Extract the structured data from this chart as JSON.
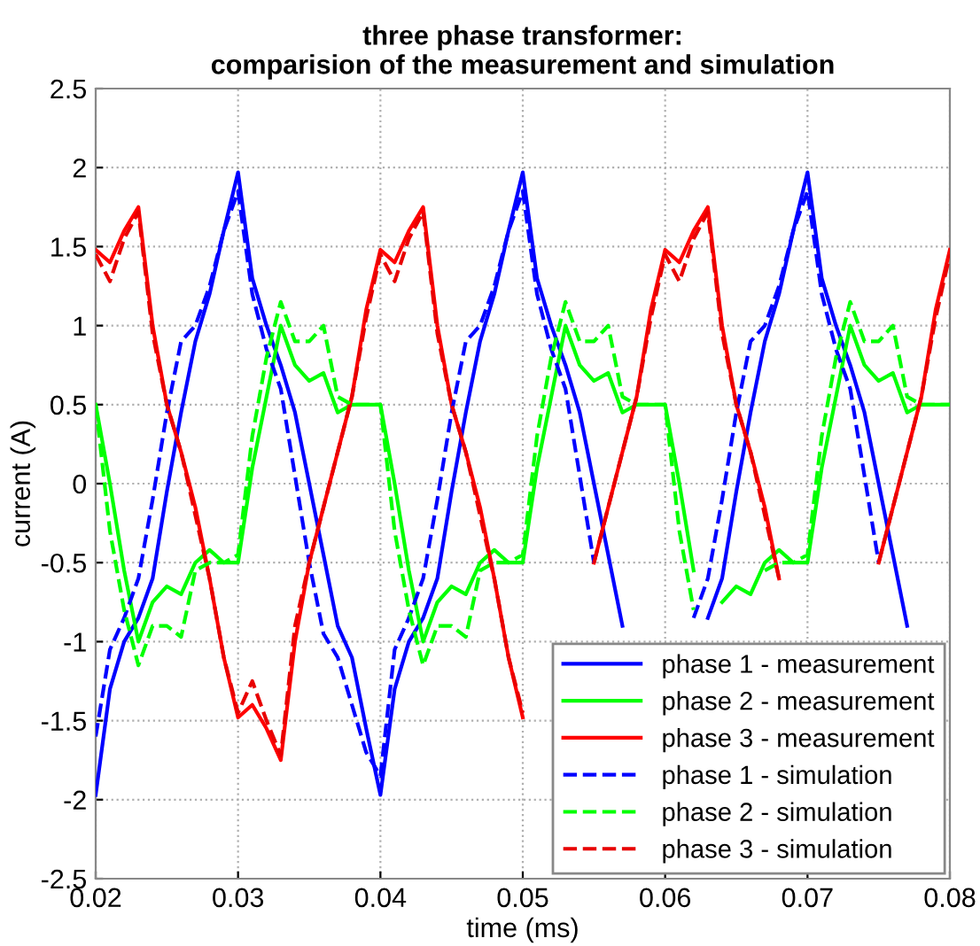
{
  "chart_data": {
    "type": "line",
    "title": "three phase transformer:\ncomparision of the measurement and simulation",
    "xlabel": "time (ms)",
    "ylabel": "current (A)",
    "x": [
      0.02,
      0.021,
      0.022,
      0.023,
      0.024,
      0.025,
      0.026,
      0.027,
      0.028,
      0.029,
      0.03,
      0.031,
      0.032,
      0.033,
      0.034,
      0.035,
      0.036,
      0.037,
      0.038,
      0.039,
      0.04,
      0.041,
      0.042,
      0.043,
      0.044,
      0.045,
      0.046,
      0.047,
      0.048,
      0.049,
      0.05,
      0.051,
      0.052,
      0.053,
      0.054,
      0.055,
      0.056,
      0.057,
      0.058,
      0.059,
      0.06,
      0.061,
      0.062,
      0.063,
      0.064,
      0.065,
      0.066,
      0.067,
      0.068,
      0.069,
      0.07,
      0.071,
      0.072,
      0.073,
      0.074,
      0.075,
      0.076,
      0.077,
      0.078,
      0.079,
      0.08
    ],
    "series": [
      {
        "name": "phase 1 - measurement",
        "color": "#0000ff",
        "line_style": "solid",
        "values": [
          -1.97,
          -1.3,
          -1.0,
          -0.85,
          -0.6,
          -0.05,
          0.45,
          0.9,
          1.2,
          1.6,
          1.97,
          1.3,
          1.0,
          0.75,
          0.45,
          0.0,
          -0.45,
          -0.9,
          -1.1,
          -1.55,
          -1.97,
          -1.3,
          -1.0,
          -0.85,
          -0.6,
          -0.05,
          0.45,
          0.9,
          1.2,
          1.6,
          1.97,
          1.3,
          1.0,
          0.75,
          0.45,
          0.0,
          -0.45,
          -0.9,
          null,
          null,
          null,
          null,
          null,
          -0.85,
          -0.6,
          -0.05,
          0.45,
          0.9,
          1.2,
          1.6,
          1.97,
          1.3,
          1.0,
          0.75,
          0.45,
          0.0,
          -0.45,
          -0.9,
          null,
          null,
          null
        ]
      },
      {
        "name": "phase 2 - measurement",
        "color": "#00ff00",
        "line_style": "solid",
        "values": [
          0.5,
          0.0,
          -0.55,
          -1.0,
          -0.75,
          -0.65,
          -0.7,
          -0.5,
          -0.42,
          -0.5,
          -0.5,
          0.1,
          0.55,
          1.0,
          0.75,
          0.65,
          0.7,
          0.45,
          0.5,
          0.5,
          0.5,
          0.0,
          -0.55,
          -1.0,
          -0.75,
          -0.65,
          -0.7,
          -0.5,
          -0.42,
          -0.5,
          -0.5,
          0.1,
          0.55,
          1.0,
          0.75,
          0.65,
          0.7,
          0.45,
          0.5,
          0.5,
          0.5,
          0.0,
          -0.55,
          null,
          -0.75,
          -0.65,
          -0.7,
          -0.5,
          -0.42,
          -0.5,
          -0.5,
          0.1,
          0.55,
          1.0,
          0.75,
          0.65,
          0.7,
          0.45,
          0.5,
          0.5,
          0.5
        ]
      },
      {
        "name": "phase 3 - measurement",
        "color": "#ff0000",
        "line_style": "solid",
        "values": [
          1.48,
          1.4,
          1.6,
          1.75,
          1.0,
          0.5,
          0.2,
          -0.15,
          -0.6,
          -1.1,
          -1.48,
          -1.4,
          -1.55,
          -1.75,
          -1.0,
          -0.5,
          -0.15,
          0.2,
          0.55,
          1.1,
          1.48,
          1.4,
          1.6,
          1.75,
          1.0,
          0.5,
          0.2,
          -0.15,
          -0.6,
          -1.1,
          -1.48,
          null,
          null,
          null,
          null,
          -0.5,
          -0.15,
          0.2,
          0.55,
          1.1,
          1.48,
          1.4,
          1.6,
          1.75,
          1.0,
          0.5,
          0.2,
          -0.15,
          -0.6,
          null,
          null,
          null,
          null,
          null,
          null,
          -0.5,
          -0.15,
          0.2,
          0.55,
          1.1,
          1.48
        ]
      },
      {
        "name": "phase 1 - simulation",
        "color": "#0000ff",
        "line_style": "dashed",
        "values": [
          -1.6,
          -1.05,
          -0.85,
          -0.6,
          -0.1,
          0.45,
          0.9,
          1.0,
          1.25,
          1.6,
          1.85,
          1.2,
          0.85,
          0.6,
          0.05,
          -0.5,
          -0.95,
          -1.1,
          -1.4,
          -1.7,
          -1.85,
          -1.05,
          -0.85,
          -0.6,
          -0.1,
          0.45,
          0.9,
          1.0,
          1.25,
          1.6,
          1.85,
          1.2,
          0.85,
          0.6,
          0.05,
          -0.5,
          null,
          null,
          null,
          null,
          null,
          null,
          -0.85,
          -0.6,
          -0.1,
          0.45,
          0.9,
          1.0,
          1.25,
          1.6,
          1.85,
          1.2,
          0.85,
          0.6,
          0.05,
          -0.5,
          null,
          null,
          null,
          null,
          null
        ]
      },
      {
        "name": "phase 2 - simulation",
        "color": "#00ff00",
        "line_style": "dashed",
        "values": [
          0.5,
          -0.3,
          -0.8,
          -1.15,
          -0.9,
          -0.9,
          -0.97,
          -0.55,
          -0.5,
          -0.5,
          -0.45,
          0.3,
          0.8,
          1.15,
          0.9,
          0.9,
          1.0,
          0.55,
          0.5,
          0.5,
          0.5,
          -0.3,
          -0.8,
          -1.15,
          -0.9,
          -0.9,
          -0.97,
          -0.55,
          -0.5,
          -0.5,
          -0.45,
          0.3,
          0.8,
          1.15,
          0.9,
          0.9,
          1.0,
          0.55,
          0.5,
          0.5,
          0.5,
          -0.3,
          -0.8,
          null,
          null,
          null,
          null,
          -0.55,
          -0.5,
          -0.5,
          -0.45,
          0.3,
          0.8,
          1.15,
          0.9,
          0.9,
          1.0,
          0.55,
          0.5,
          0.5,
          0.5
        ]
      },
      {
        "name": "phase 3 - simulation",
        "color": "#e80000",
        "line_style": "dashed",
        "values": [
          1.45,
          1.28,
          1.55,
          1.72,
          0.95,
          0.5,
          0.2,
          -0.2,
          -0.6,
          -1.1,
          -1.45,
          -1.25,
          -1.5,
          -1.72,
          -0.9,
          -0.5,
          -0.15,
          0.2,
          0.55,
          1.05,
          1.45,
          1.28,
          1.55,
          1.72,
          0.95,
          0.5,
          0.2,
          -0.2,
          -0.6,
          -1.1,
          -1.45,
          null,
          null,
          null,
          null,
          -0.5,
          -0.15,
          0.2,
          0.55,
          1.05,
          1.45,
          1.28,
          1.55,
          1.72,
          0.95,
          0.5,
          0.2,
          -0.2,
          -0.6,
          null,
          null,
          null,
          null,
          null,
          null,
          -0.5,
          -0.15,
          0.2,
          0.55,
          1.05,
          1.45
        ]
      }
    ],
    "xlim": [
      0.02,
      0.08
    ],
    "xticks": [
      0.02,
      0.03,
      0.04,
      0.05,
      0.06,
      0.07,
      0.08
    ],
    "ylim": [
      -2.5,
      2.5
    ],
    "yticks": [
      -2.5,
      -2,
      -1.5,
      -1,
      -0.5,
      0,
      0.5,
      1,
      1.5,
      2,
      2.5
    ],
    "grid": true,
    "legend": "bottom right"
  }
}
